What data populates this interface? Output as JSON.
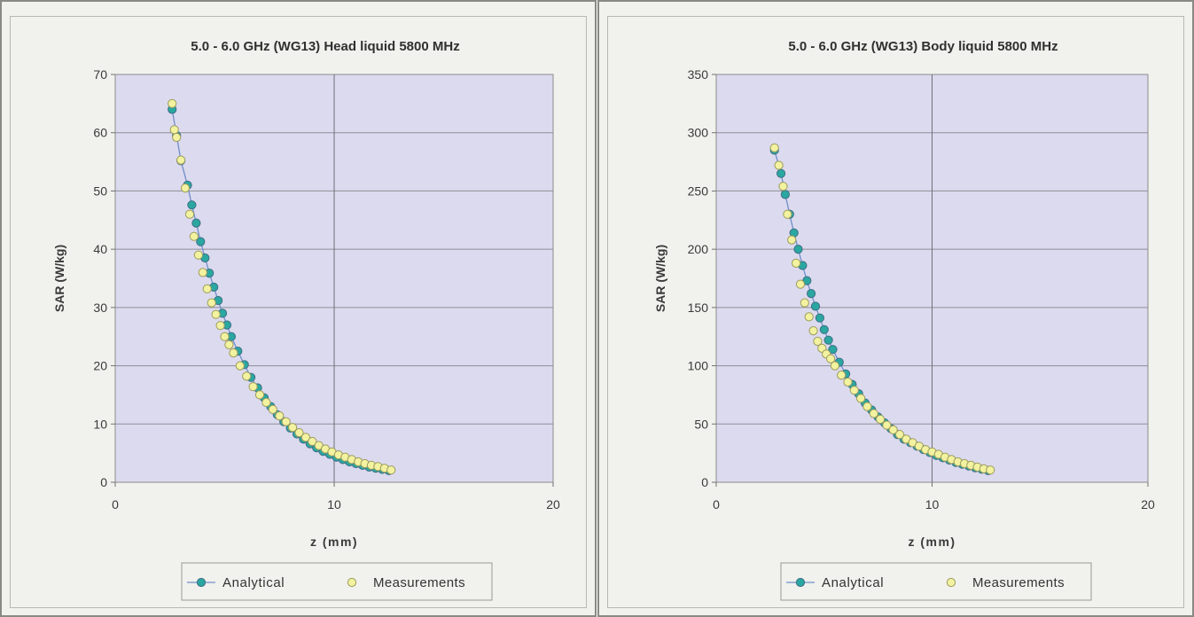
{
  "chart_data": [
    {
      "type": "scatter",
      "title": "5.0 - 6.0 GHz (WG13) Head liquid 5800 MHz",
      "xlabel": "z (mm)",
      "ylabel": "SAR (W/kg)",
      "xlim": [
        0,
        20
      ],
      "ylim": [
        0,
        70
      ],
      "xticks": [
        0,
        10,
        20
      ],
      "yticks": [
        0,
        10,
        20,
        30,
        40,
        50,
        60,
        70
      ],
      "grid": true,
      "legend": "bottom",
      "series": [
        {
          "name": "Analytical",
          "style": "line-markers",
          "color": "#2aa7a0",
          "x": [
            2.6,
            2.8,
            3.0,
            3.3,
            3.5,
            3.7,
            3.9,
            4.1,
            4.3,
            4.5,
            4.7,
            4.9,
            5.1,
            5.3,
            5.6,
            5.9,
            6.2,
            6.5,
            6.8,
            7.1,
            7.4,
            7.7,
            8.0,
            8.3,
            8.6,
            8.9,
            9.2,
            9.5,
            9.8,
            10.1,
            10.4,
            10.7,
            11.0,
            11.3,
            11.6,
            11.9,
            12.2,
            12.5
          ],
          "y": [
            64.0,
            59.5,
            55.2,
            51.0,
            47.6,
            44.5,
            41.3,
            38.5,
            35.9,
            33.5,
            31.2,
            29.0,
            27.0,
            25.0,
            22.5,
            20.2,
            18.0,
            16.2,
            14.5,
            13.0,
            11.6,
            10.4,
            9.3,
            8.3,
            7.4,
            6.6,
            5.9,
            5.3,
            4.8,
            4.3,
            3.9,
            3.5,
            3.2,
            2.9,
            2.6,
            2.4,
            2.2,
            2.0
          ]
        },
        {
          "name": "Measurements",
          "style": "markers",
          "color": "#f2f2a0",
          "x": [
            2.6,
            2.7,
            2.8,
            3.0,
            3.2,
            3.4,
            3.6,
            3.8,
            4.0,
            4.2,
            4.4,
            4.6,
            4.8,
            5.0,
            5.2,
            5.4,
            5.7,
            6.0,
            6.3,
            6.6,
            6.9,
            7.2,
            7.5,
            7.8,
            8.1,
            8.4,
            8.7,
            9.0,
            9.3,
            9.6,
            9.9,
            10.2,
            10.5,
            10.8,
            11.1,
            11.4,
            11.7,
            12.0,
            12.3,
            12.6
          ],
          "y": [
            65.0,
            60.5,
            59.2,
            55.3,
            50.5,
            46.0,
            42.2,
            39.0,
            36.0,
            33.2,
            30.8,
            28.8,
            26.9,
            25.0,
            23.6,
            22.2,
            20.0,
            18.2,
            16.4,
            15.0,
            13.7,
            12.5,
            11.4,
            10.4,
            9.4,
            8.5,
            7.7,
            7.0,
            6.3,
            5.7,
            5.2,
            4.7,
            4.3,
            3.9,
            3.5,
            3.2,
            2.9,
            2.7,
            2.4,
            2.1
          ]
        }
      ]
    },
    {
      "type": "scatter",
      "title": "5.0 - 6.0 GHz (WG13) Body liquid 5800 MHz",
      "xlabel": "z (mm)",
      "ylabel": "SAR (W/kg)",
      "xlim": [
        0,
        20
      ],
      "ylim": [
        0,
        350
      ],
      "xticks": [
        0,
        10,
        20
      ],
      "yticks": [
        0,
        50,
        100,
        150,
        200,
        250,
        300,
        350
      ],
      "grid": true,
      "legend": "bottom",
      "series": [
        {
          "name": "Analytical",
          "style": "line-markers",
          "color": "#2aa7a0",
          "x": [
            2.7,
            3.0,
            3.2,
            3.4,
            3.6,
            3.8,
            4.0,
            4.2,
            4.4,
            4.6,
            4.8,
            5.0,
            5.2,
            5.4,
            5.7,
            6.0,
            6.3,
            6.6,
            6.9,
            7.2,
            7.5,
            7.8,
            8.1,
            8.4,
            8.7,
            9.0,
            9.3,
            9.6,
            9.9,
            10.2,
            10.5,
            10.8,
            11.1,
            11.4,
            11.7,
            12.0,
            12.3,
            12.6
          ],
          "y": [
            285,
            265,
            247,
            230,
            214,
            200,
            186,
            173,
            162,
            151,
            141,
            131,
            122,
            114,
            103,
            93,
            84,
            76,
            68,
            62,
            56,
            51,
            46,
            41,
            37,
            34,
            31,
            28,
            25.5,
            23,
            21,
            19,
            17,
            15.5,
            14,
            12.5,
            11.2,
            10
          ]
        },
        {
          "name": "Measurements",
          "style": "markers",
          "color": "#f2f2a0",
          "x": [
            2.7,
            2.9,
            3.1,
            3.3,
            3.5,
            3.7,
            3.9,
            4.1,
            4.3,
            4.5,
            4.7,
            4.9,
            5.1,
            5.3,
            5.5,
            5.8,
            6.1,
            6.4,
            6.7,
            7.0,
            7.3,
            7.6,
            7.9,
            8.2,
            8.5,
            8.8,
            9.1,
            9.4,
            9.7,
            10.0,
            10.3,
            10.6,
            10.9,
            11.2,
            11.5,
            11.8,
            12.1,
            12.4,
            12.7
          ],
          "y": [
            287,
            272,
            254,
            230,
            208,
            188,
            170,
            154,
            142,
            130,
            121,
            115,
            110,
            106,
            100,
            92,
            86,
            79,
            72,
            65,
            59,
            54,
            49,
            45,
            41,
            37,
            34,
            31,
            28,
            26,
            24,
            21.5,
            19.5,
            17.5,
            16,
            14.5,
            13,
            11.5,
            10.5
          ]
        }
      ]
    }
  ]
}
